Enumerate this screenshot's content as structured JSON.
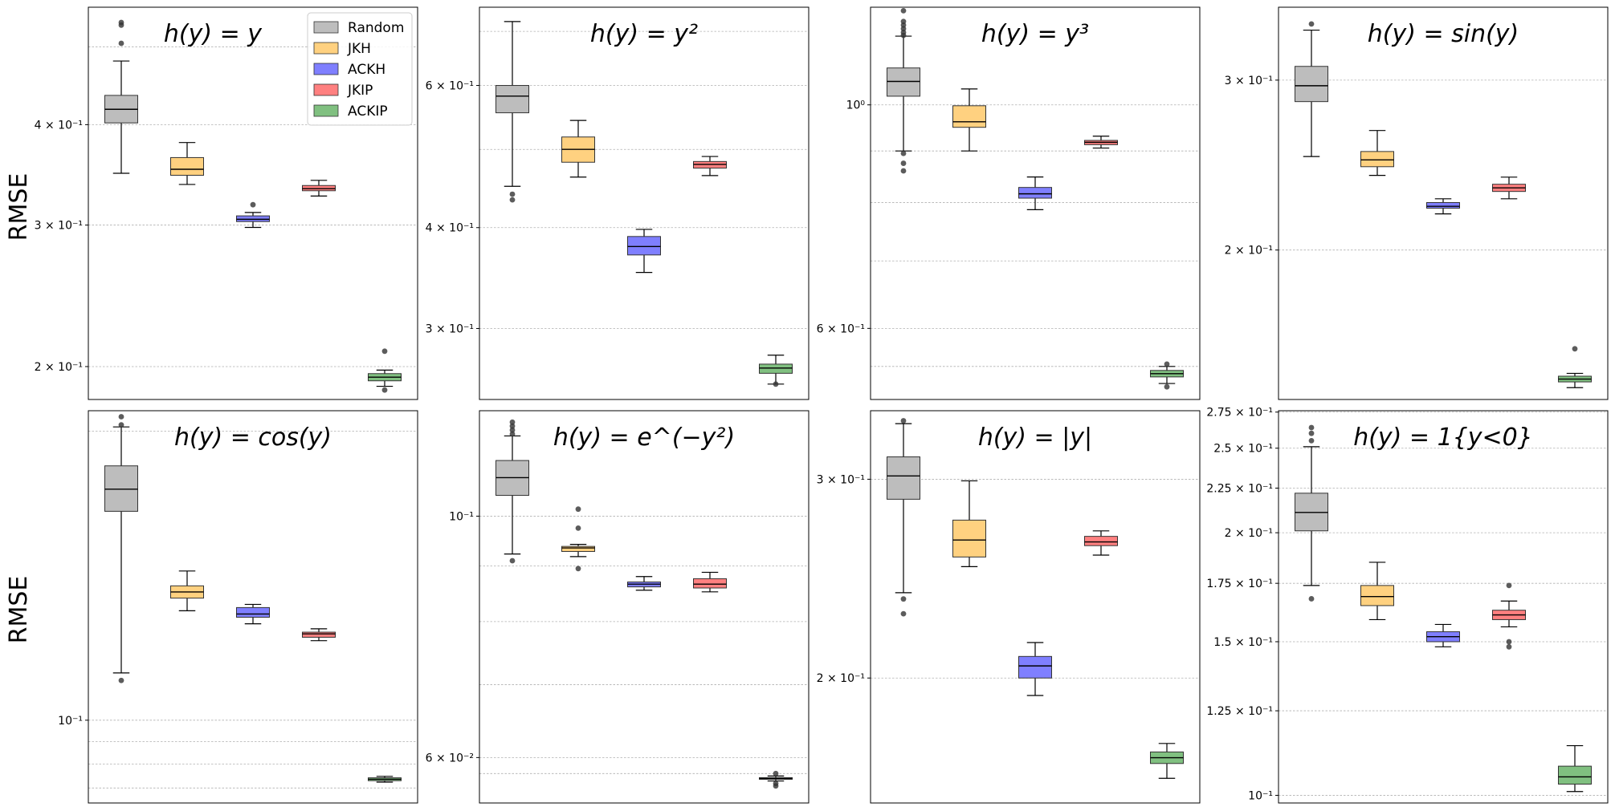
{
  "figure": {
    "ylabel_row1": "RMSE",
    "ylabel_row2": "RMSE"
  },
  "legend": {
    "placement": "top-right of first panel",
    "entries": [
      {
        "name": "Random",
        "color": "#bdbdbd"
      },
      {
        "name": "JKH",
        "color": "#ffd180"
      },
      {
        "name": "ACKH",
        "color": "#7f7fff"
      },
      {
        "name": "JKIP",
        "color": "#ff8080"
      },
      {
        "name": "ACKIP",
        "color": "#80c080"
      }
    ]
  },
  "chart_data": [
    {
      "type": "box",
      "scale": "log",
      "ylim": [
        0.182,
        0.56
      ],
      "grid": "y-dashed",
      "title": "h(y) = y",
      "yticks": [
        {
          "v": 0.2,
          "label": "2 × 10⁻¹"
        },
        {
          "v": 0.3,
          "label": "3 × 10⁻¹"
        },
        {
          "v": 0.4,
          "label": "4 × 10⁻¹"
        }
      ],
      "minor_grid": [
        0.5
      ],
      "boxes": [
        {
          "name": "Random",
          "low": 0.348,
          "q1": 0.402,
          "med": 0.418,
          "q3": 0.435,
          "high": 0.48,
          "outliers": [
            0.505,
            0.532,
            0.536
          ]
        },
        {
          "name": "JKH",
          "low": 0.337,
          "q1": 0.346,
          "med": 0.352,
          "q3": 0.364,
          "high": 0.38,
          "outliers": []
        },
        {
          "name": "ACKH",
          "low": 0.298,
          "q1": 0.303,
          "med": 0.305,
          "q3": 0.308,
          "high": 0.311,
          "outliers": [
            0.318
          ]
        },
        {
          "name": "JKIP",
          "low": 0.326,
          "q1": 0.331,
          "med": 0.333,
          "q3": 0.336,
          "high": 0.341,
          "outliers": []
        },
        {
          "name": "ACKIP",
          "low": 0.189,
          "q1": 0.192,
          "med": 0.194,
          "q3": 0.196,
          "high": 0.198,
          "outliers": [
            0.209,
            0.187
          ]
        }
      ]
    },
    {
      "type": "box",
      "scale": "log",
      "ylim": [
        0.245,
        0.75
      ],
      "grid": "y-dashed",
      "title": "h(y) = y²",
      "yticks": [
        {
          "v": 0.3,
          "label": "3 × 10⁻¹"
        },
        {
          "v": 0.4,
          "label": "4 × 10⁻¹"
        },
        {
          "v": 0.6,
          "label": "6 × 10⁻¹"
        }
      ],
      "minor_grid": [
        0.5,
        0.7
      ],
      "boxes": [
        {
          "name": "Random",
          "low": 0.45,
          "q1": 0.555,
          "med": 0.582,
          "q3": 0.6,
          "high": 0.72,
          "outliers": [
            0.433,
            0.44
          ]
        },
        {
          "name": "JKH",
          "low": 0.462,
          "q1": 0.482,
          "med": 0.5,
          "q3": 0.518,
          "high": 0.543,
          "outliers": []
        },
        {
          "name": "ACKH",
          "low": 0.352,
          "q1": 0.37,
          "med": 0.379,
          "q3": 0.39,
          "high": 0.398,
          "outliers": []
        },
        {
          "name": "JKIP",
          "low": 0.464,
          "q1": 0.474,
          "med": 0.479,
          "q3": 0.483,
          "high": 0.49,
          "outliers": []
        },
        {
          "name": "ACKIP",
          "low": 0.256,
          "q1": 0.264,
          "med": 0.268,
          "q3": 0.271,
          "high": 0.278,
          "outliers": [
            0.256
          ]
        }
      ]
    },
    {
      "type": "box",
      "scale": "log",
      "ylim": [
        0.51,
        1.25
      ],
      "grid": "y-dashed",
      "title": "h(y) = y³",
      "yticks": [
        {
          "v": 0.6,
          "label": "6 × 10⁻¹"
        },
        {
          "v": 1.0,
          "label": "10⁰"
        }
      ],
      "minor_grid": [
        0.55,
        0.7,
        0.8,
        0.9
      ],
      "boxes": [
        {
          "name": "Random",
          "low": 0.9,
          "q1": 1.02,
          "med": 1.055,
          "q3": 1.088,
          "high": 1.17,
          "outliers": [
            0.86,
            0.875,
            0.895,
            1.172,
            1.18,
            1.19,
            1.2,
            1.21,
            1.24
          ]
        },
        {
          "name": "JKH",
          "low": 0.9,
          "q1": 0.95,
          "med": 0.962,
          "q3": 0.998,
          "high": 1.037,
          "outliers": []
        },
        {
          "name": "ACKH",
          "low": 0.787,
          "q1": 0.808,
          "med": 0.816,
          "q3": 0.828,
          "high": 0.848,
          "outliers": []
        },
        {
          "name": "JKIP",
          "low": 0.906,
          "q1": 0.913,
          "med": 0.918,
          "q3": 0.922,
          "high": 0.931,
          "outliers": []
        },
        {
          "name": "ACKIP",
          "low": 0.529,
          "q1": 0.537,
          "med": 0.541,
          "q3": 0.545,
          "high": 0.55,
          "outliers": [
            0.553,
            0.525
          ]
        }
      ]
    },
    {
      "type": "box",
      "scale": "log",
      "ylim": [
        0.14,
        0.357
      ],
      "grid": "y-dashed",
      "title": "h(y) = sin(y)",
      "yticks": [
        {
          "v": 0.2,
          "label": "2 × 10⁻¹"
        },
        {
          "v": 0.3,
          "label": "3 × 10⁻¹"
        }
      ],
      "minor_grid": [],
      "boxes": [
        {
          "name": "Random",
          "low": 0.25,
          "q1": 0.285,
          "med": 0.296,
          "q3": 0.31,
          "high": 0.338,
          "outliers": [
            0.343
          ]
        },
        {
          "name": "JKH",
          "low": 0.239,
          "q1": 0.244,
          "med": 0.248,
          "q3": 0.253,
          "high": 0.266,
          "outliers": []
        },
        {
          "name": "ACKH",
          "low": 0.218,
          "q1": 0.221,
          "med": 0.222,
          "q3": 0.224,
          "high": 0.226,
          "outliers": []
        },
        {
          "name": "JKIP",
          "low": 0.226,
          "q1": 0.23,
          "med": 0.232,
          "q3": 0.234,
          "high": 0.238,
          "outliers": []
        },
        {
          "name": "ACKIP",
          "low": 0.144,
          "q1": 0.146,
          "med": 0.147,
          "q3": 0.148,
          "high": 0.149,
          "outliers": [
            0.158
          ]
        }
      ]
    },
    {
      "type": "box",
      "scale": "log",
      "ylim": [
        0.082,
        0.21
      ],
      "grid": "y-dashed",
      "title": "h(y) = cos(y)",
      "yticks": [
        {
          "v": 0.1,
          "label": "10⁻¹"
        }
      ],
      "minor_grid": [
        0.2,
        0.095,
        0.09,
        0.085
      ],
      "boxes": [
        {
          "name": "Random",
          "low": 0.112,
          "q1": 0.165,
          "med": 0.174,
          "q3": 0.184,
          "high": 0.202,
          "outliers": [
            0.11,
            0.203,
            0.207
          ]
        },
        {
          "name": "JKH",
          "low": 0.13,
          "q1": 0.134,
          "med": 0.136,
          "q3": 0.138,
          "high": 0.143,
          "outliers": []
        },
        {
          "name": "ACKH",
          "low": 0.126,
          "q1": 0.128,
          "med": 0.129,
          "q3": 0.131,
          "high": 0.132,
          "outliers": []
        },
        {
          "name": "JKIP",
          "low": 0.121,
          "q1": 0.122,
          "med": 0.123,
          "q3": 0.1235,
          "high": 0.1245,
          "outliers": []
        },
        {
          "name": "ACKIP",
          "low": 0.0862,
          "q1": 0.0865,
          "med": 0.0868,
          "q3": 0.0871,
          "high": 0.0874,
          "outliers": []
        }
      ]
    },
    {
      "type": "box",
      "scale": "log",
      "ylim": [
        0.0545,
        0.125
      ],
      "grid": "y-dashed",
      "title": "h(y) = e^(−y²)",
      "yticks": [
        {
          "v": 0.06,
          "label": "6 × 10⁻²"
        },
        {
          "v": 0.1,
          "label": "10⁻¹"
        }
      ],
      "minor_grid": [
        0.058,
        0.07,
        0.08,
        0.09
      ],
      "boxes": [
        {
          "name": "Random",
          "low": 0.0923,
          "q1": 0.1045,
          "med": 0.1085,
          "q3": 0.1125,
          "high": 0.1185,
          "outliers": [
            0.091,
            0.119,
            0.12,
            0.121,
            0.122
          ]
        },
        {
          "name": "JKH",
          "low": 0.0918,
          "q1": 0.0928,
          "med": 0.0935,
          "q3": 0.0938,
          "high": 0.0942,
          "outliers": [
            0.0975,
            0.0895,
            0.1015
          ]
        },
        {
          "name": "ACKH",
          "low": 0.0855,
          "q1": 0.0861,
          "med": 0.0866,
          "q3": 0.087,
          "high": 0.088,
          "outliers": []
        },
        {
          "name": "JKIP",
          "low": 0.0852,
          "q1": 0.0859,
          "med": 0.0866,
          "q3": 0.0876,
          "high": 0.0888,
          "outliers": []
        },
        {
          "name": "ACKIP",
          "low": 0.0571,
          "q1": 0.0573,
          "med": 0.0574,
          "q3": 0.0575,
          "high": 0.0577,
          "outliers": [
            0.0568,
            0.0565,
            0.058
          ]
        }
      ]
    },
    {
      "type": "box",
      "scale": "log",
      "ylim": [
        0.155,
        0.345
      ],
      "grid": "y-dashed",
      "title": "h(y) = |y|",
      "yticks": [
        {
          "v": 0.2,
          "label": "2 × 10⁻¹"
        },
        {
          "v": 0.3,
          "label": "3 × 10⁻¹"
        }
      ],
      "minor_grid": [],
      "boxes": [
        {
          "name": "Random",
          "low": 0.238,
          "q1": 0.288,
          "med": 0.302,
          "q3": 0.314,
          "high": 0.336,
          "outliers": [
            0.235,
            0.228,
            0.338
          ]
        },
        {
          "name": "JKH",
          "low": 0.251,
          "q1": 0.256,
          "med": 0.265,
          "q3": 0.276,
          "high": 0.299,
          "outliers": []
        },
        {
          "name": "ACKH",
          "low": 0.193,
          "q1": 0.2,
          "med": 0.205,
          "q3": 0.209,
          "high": 0.215,
          "outliers": []
        },
        {
          "name": "JKIP",
          "low": 0.257,
          "q1": 0.262,
          "med": 0.264,
          "q3": 0.267,
          "high": 0.27,
          "outliers": []
        },
        {
          "name": "ACKIP",
          "low": 0.163,
          "q1": 0.168,
          "med": 0.17,
          "q3": 0.172,
          "high": 0.175,
          "outliers": []
        }
      ]
    },
    {
      "type": "box",
      "scale": "log",
      "ylim": [
        0.098,
        0.276
      ],
      "grid": "y-dashed",
      "title": "h(y) = 1{y<0}",
      "yticks": [
        {
          "v": 0.1,
          "label": "10⁻¹"
        },
        {
          "v": 0.125,
          "label": "1.25 × 10⁻¹"
        },
        {
          "v": 0.15,
          "label": "1.5 × 10⁻¹"
        },
        {
          "v": 0.175,
          "label": "1.75 × 10⁻¹"
        },
        {
          "v": 0.2,
          "label": "2 × 10⁻¹"
        },
        {
          "v": 0.225,
          "label": "2.25 × 10⁻¹"
        },
        {
          "v": 0.25,
          "label": "2.5 × 10⁻¹"
        },
        {
          "v": 0.275,
          "label": "2.75 × 10⁻¹"
        }
      ],
      "minor_grid": [],
      "boxes": [
        {
          "name": "Random",
          "low": 0.174,
          "q1": 0.201,
          "med": 0.211,
          "q3": 0.222,
          "high": 0.251,
          "outliers": [
            0.168,
            0.255,
            0.26,
            0.264
          ]
        },
        {
          "name": "JKH",
          "low": 0.159,
          "q1": 0.165,
          "med": 0.169,
          "q3": 0.174,
          "high": 0.185,
          "outliers": []
        },
        {
          "name": "ACKH",
          "low": 0.148,
          "q1": 0.15,
          "med": 0.152,
          "q3": 0.154,
          "high": 0.157,
          "outliers": []
        },
        {
          "name": "JKIP",
          "low": 0.156,
          "q1": 0.159,
          "med": 0.161,
          "q3": 0.163,
          "high": 0.167,
          "outliers": [
            0.148,
            0.15,
            0.174
          ]
        },
        {
          "name": "ACKIP",
          "low": 0.101,
          "q1": 0.103,
          "med": 0.105,
          "q3": 0.108,
          "high": 0.114,
          "outliers": []
        }
      ]
    }
  ]
}
